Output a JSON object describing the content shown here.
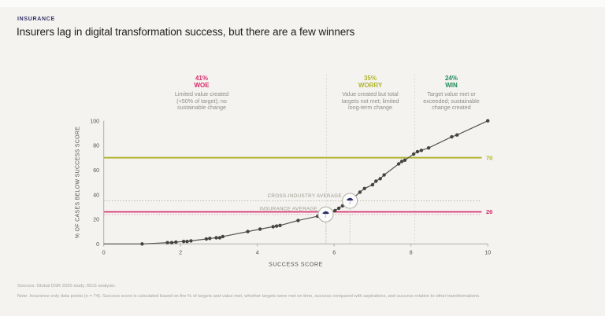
{
  "page": {
    "kicker": "INSURANCE",
    "title": "Insurers lag in digital transformation success, but there are a few winners",
    "sources_note": "Sources: Global DSR 2020 study; BCG analysis.",
    "footnote": "Note: Insurance only data points (n = 74). Success score is calculated based on the % of targets and value met, whether targets were met on time, success compared with aspirations, and success relative to other transformations."
  },
  "zones": [
    {
      "pct": "41%",
      "name": "WOE",
      "color": "#d6296b",
      "desc_lines": [
        "Limited value created",
        "(<50% of target); no",
        "sustainable change"
      ]
    },
    {
      "pct": "35%",
      "name": "WORRY",
      "color": "#b0b431",
      "desc_lines": [
        "Value created but total",
        "targets not met; limited",
        "long-term change"
      ]
    },
    {
      "pct": "24%",
      "name": "WIN",
      "color": "#1e8a5a",
      "desc_lines": [
        "Target value met or",
        "exceeded; sustainable",
        "change created"
      ]
    }
  ],
  "chart_data": {
    "type": "line",
    "xlabel": "SUCCESS SCORE",
    "ylabel": "% OF CASES BELOW SUCCESS SCORE",
    "xlim": [
      0,
      10
    ],
    "ylim": [
      0,
      100
    ],
    "x_ticks": [
      0,
      2,
      4,
      6,
      8,
      10
    ],
    "y_ticks": [
      0,
      20,
      40,
      60,
      80,
      100
    ],
    "grid": false,
    "points": [
      [
        1.0,
        0
      ],
      [
        1.66,
        1
      ],
      [
        1.77,
        1
      ],
      [
        1.88,
        1.5
      ],
      [
        2.08,
        2
      ],
      [
        2.17,
        2
      ],
      [
        2.27,
        2.5
      ],
      [
        2.67,
        4
      ],
      [
        2.76,
        4.5
      ],
      [
        2.93,
        5
      ],
      [
        3.02,
        5
      ],
      [
        3.1,
        6
      ],
      [
        3.75,
        10
      ],
      [
        4.07,
        12
      ],
      [
        4.41,
        14
      ],
      [
        4.5,
        14.5
      ],
      [
        4.59,
        15
      ],
      [
        5.06,
        19
      ],
      [
        5.57,
        22.5
      ],
      [
        5.78,
        24
      ],
      [
        6.02,
        27
      ],
      [
        6.12,
        29
      ],
      [
        6.22,
        31
      ],
      [
        6.41,
        35
      ],
      [
        6.67,
        42
      ],
      [
        6.79,
        45
      ],
      [
        7.0,
        48
      ],
      [
        7.09,
        51
      ],
      [
        7.2,
        53
      ],
      [
        7.3,
        56
      ],
      [
        7.68,
        65
      ],
      [
        7.76,
        67
      ],
      [
        7.84,
        68
      ],
      [
        8.07,
        73
      ],
      [
        8.17,
        75
      ],
      [
        8.27,
        76
      ],
      [
        8.46,
        78
      ],
      [
        9.06,
        87
      ],
      [
        9.2,
        88.5
      ],
      [
        10,
        100
      ]
    ],
    "threshold_lines": [
      {
        "value": 70,
        "label": "70",
        "color": "#b0b431"
      },
      {
        "value": 26,
        "label": "26",
        "color": "#d6296b"
      }
    ],
    "average_lines": [
      {
        "value": 35,
        "label": "CROSS-INDUSTRY AVERAGE"
      },
      {
        "value": 24,
        "label": "INSURANCE AVERAGE"
      }
    ],
    "zone_boundaries": [
      5.8,
      8.1
    ],
    "markers": [
      {
        "x": 5.78,
        "y": 24,
        "icon": "umbrella"
      },
      {
        "x": 6.41,
        "y": 35,
        "icon": "umbrella"
      }
    ]
  },
  "colors": {
    "background": "#f4f3ef",
    "accent_pink": "#d6296b",
    "accent_olive": "#b0b431",
    "accent_green": "#1e8a5a",
    "kicker_navy": "#32326b",
    "curve": "#57554f",
    "dot": "#454340",
    "axis": "#b0aea6",
    "tick_text": "#55534c",
    "annotation_text": "#9b998f",
    "separator": "#dcdad2",
    "avg_cross_line": "#b3b1a8",
    "avg_insurance_line": "#d4a2ba",
    "umbrella": "#2d2d66",
    "marker_fill": "#fcfcfb",
    "marker_stroke": "#b4b2aa"
  }
}
